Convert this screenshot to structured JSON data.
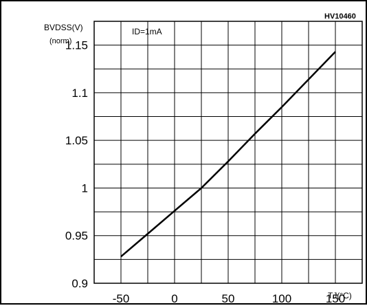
{
  "chart_data": {
    "type": "line",
    "figure_id": "HV10460",
    "annotation": "ID=1mA",
    "ylabel": "BVDSS(V)",
    "ylabel_sub": "(norm)",
    "xlabel": "TJ(°C)",
    "xlim": [
      -75,
      175
    ],
    "ylim": [
      0.9,
      1.175
    ],
    "x_ticks": [
      -50,
      0,
      50,
      100,
      150
    ],
    "x_tick_labels": [
      "-50",
      "0",
      "50",
      "100",
      "150"
    ],
    "y_ticks": [
      0.9,
      0.95,
      1,
      1.05,
      1.1,
      1.15
    ],
    "y_tick_labels": [
      "0.9",
      "0.95",
      "1",
      "1.05",
      "1.1",
      "1.15"
    ],
    "grid": true,
    "series": [
      {
        "x": [
          -50,
          -25,
          0,
          25,
          50,
          75,
          100,
          125,
          150
        ],
        "y": [
          0.928,
          0.952,
          0.976,
          1.0,
          1.028,
          1.057,
          1.085,
          1.114,
          1.143
        ]
      }
    ]
  }
}
